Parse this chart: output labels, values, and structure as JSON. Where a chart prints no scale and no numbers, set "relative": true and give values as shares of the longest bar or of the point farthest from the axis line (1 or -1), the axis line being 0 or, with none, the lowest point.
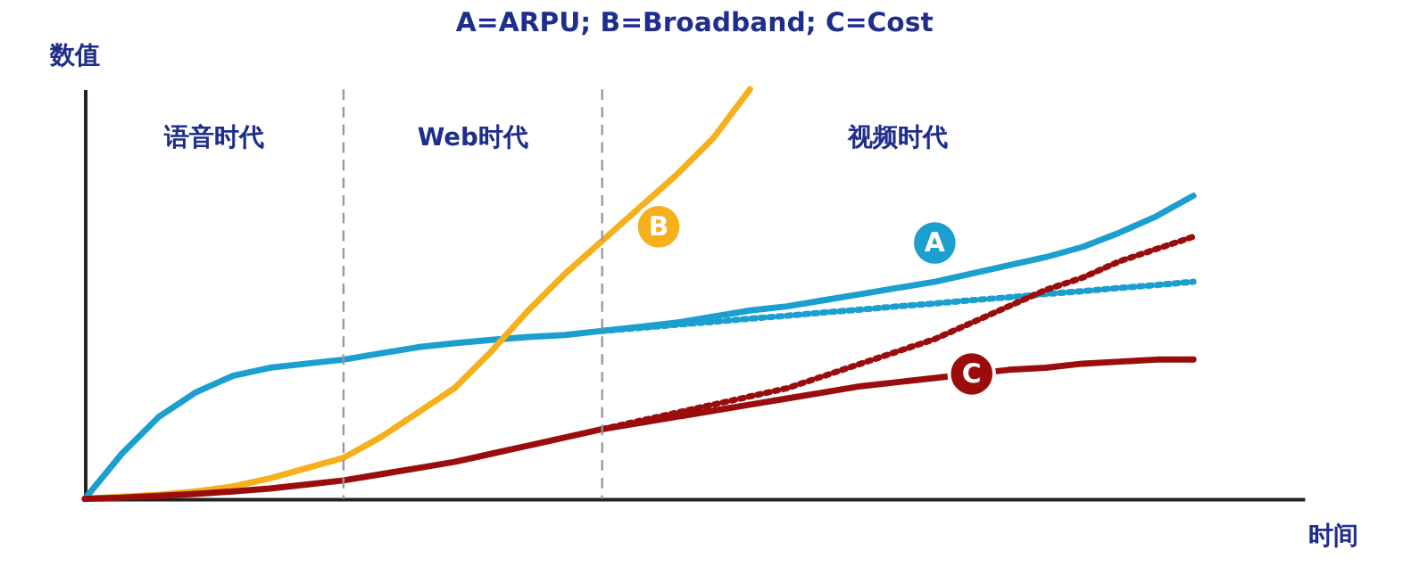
{
  "chart_data": {
    "type": "line",
    "relative": true,
    "title": "A=ARPU; B=Broadband; C=Cost",
    "xlabel": "时间",
    "ylabel": "数值",
    "categories": [
      null,
      null,
      null,
      null,
      null,
      null,
      null,
      null,
      null,
      null,
      null,
      null,
      null,
      null,
      null,
      null,
      null,
      null,
      null,
      null,
      null,
      null,
      null,
      null,
      null,
      null,
      null,
      null,
      null,
      null,
      null
    ],
    "series": [
      {
        "name": "A",
        "color": "#1a9fcf",
        "line_style": "solid",
        "values": [
          0,
          0.11,
          0.2,
          0.26,
          0.3,
          0.32,
          0.33,
          0.34,
          0.355,
          0.37,
          0.38,
          0.388,
          0.395,
          0.4,
          0.41,
          0.42,
          0.43,
          0.445,
          0.46,
          0.47,
          0.485,
          0.5,
          0.515,
          0.53,
          0.55,
          0.57,
          0.59,
          0.615,
          0.65,
          0.69,
          0.74
        ]
      },
      {
        "color": "#1a9fcf",
        "line_style": "dotted",
        "values": [
          null,
          null,
          null,
          null,
          null,
          null,
          null,
          null,
          null,
          null,
          null,
          null,
          null,
          null,
          0.41,
          0.417,
          0.425,
          0.432,
          0.44,
          0.447,
          0.455,
          0.462,
          0.47,
          0.477,
          0.485,
          0.492,
          0.5,
          0.507,
          0.515,
          0.522,
          0.53
        ]
      },
      {
        "name": "B",
        "color": "#f5b01b",
        "line_style": "solid",
        "values": [
          0,
          0.005,
          0.01,
          0.018,
          0.03,
          0.05,
          0.075,
          0.1,
          0.15,
          0.21,
          0.27,
          0.36,
          0.46,
          0.55,
          0.63,
          0.71,
          0.79,
          0.88,
          1.0,
          null,
          null,
          null,
          null,
          null,
          null,
          null,
          null,
          null,
          null,
          null,
          null
        ]
      },
      {
        "name": "C",
        "color": "#9b0d0d",
        "line_style": "solid",
        "values": [
          0,
          0.003,
          0.007,
          0.012,
          0.018,
          0.025,
          0.035,
          0.045,
          0.06,
          0.075,
          0.09,
          0.11,
          0.13,
          0.15,
          0.17,
          0.185,
          0.2,
          0.215,
          0.23,
          0.245,
          0.26,
          0.275,
          0.285,
          0.295,
          0.305,
          0.315,
          0.32,
          0.33,
          0.335,
          0.34,
          0.34
        ]
      },
      {
        "color": "#9b0d0d",
        "line_style": "dotted",
        "values": [
          null,
          null,
          null,
          null,
          null,
          null,
          null,
          null,
          null,
          null,
          null,
          null,
          null,
          null,
          0.17,
          0.19,
          0.21,
          0.23,
          0.25,
          0.27,
          0.3,
          0.33,
          0.36,
          0.39,
          0.43,
          0.47,
          0.51,
          0.54,
          0.58,
          0.61,
          0.64
        ]
      }
    ],
    "annotations": [
      "语音时代",
      "Web时代",
      "视频时代"
    ]
  }
}
